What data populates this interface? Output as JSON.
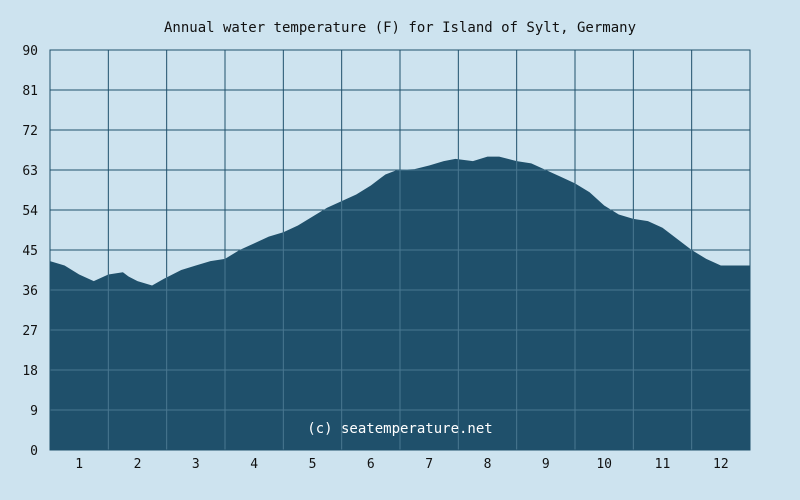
{
  "chart_data": {
    "type": "area",
    "title": "Annual water temperature (F) for Island of Sylt, Germany",
    "xlabel": "",
    "ylabel": "",
    "ylim": [
      0,
      90
    ],
    "xlim": [
      0.5,
      12.5
    ],
    "yticks": [
      0,
      9,
      18,
      27,
      36,
      45,
      54,
      63,
      72,
      81,
      90
    ],
    "xticks": [
      1,
      2,
      3,
      4,
      5,
      6,
      7,
      8,
      9,
      10,
      11,
      12
    ],
    "grid": true,
    "legend": "none",
    "series": [
      {
        "x": [
          0.5,
          0.75,
          1.0,
          1.25,
          1.5,
          1.75,
          1.85,
          2.0,
          2.25,
          2.45,
          2.75,
          3.0,
          3.25,
          3.5,
          3.75,
          4.0,
          4.25,
          4.5,
          4.75,
          5.0,
          5.25,
          5.5,
          5.75,
          6.0,
          6.25,
          6.45,
          6.75,
          7.0,
          7.25,
          7.45,
          7.75,
          8.0,
          8.2,
          8.5,
          8.75,
          9.0,
          9.25,
          9.5,
          9.75,
          10.0,
          10.25,
          10.5,
          10.75,
          11.0,
          11.25,
          11.5,
          11.75,
          12.0,
          12.5
        ],
        "values": [
          42.5,
          41.5,
          39.5,
          38.0,
          39.5,
          40.0,
          39.0,
          38.0,
          37.0,
          38.5,
          40.5,
          41.5,
          42.5,
          43.0,
          45.0,
          46.5,
          48.0,
          49.0,
          50.5,
          52.5,
          54.5,
          56.0,
          57.5,
          59.5,
          62.0,
          63.0,
          63.2,
          64.0,
          65.0,
          65.5,
          65.0,
          66.0,
          66.0,
          65.0,
          64.5,
          63.0,
          61.5,
          60.0,
          58.0,
          55.0,
          53.0,
          52.0,
          51.5,
          50.0,
          47.5,
          45.0,
          43.0,
          41.5,
          41.5
        ]
      }
    ],
    "watermark": "(c) seatemperature.net",
    "colors": {
      "background": "#cde3ef",
      "fill": "#1f506b",
      "grid_over_fill": "#4a7891",
      "grid_over_background": "#1f506b",
      "border": "#1f506b",
      "text": "#111111",
      "watermark_text": "#ffffff"
    }
  }
}
